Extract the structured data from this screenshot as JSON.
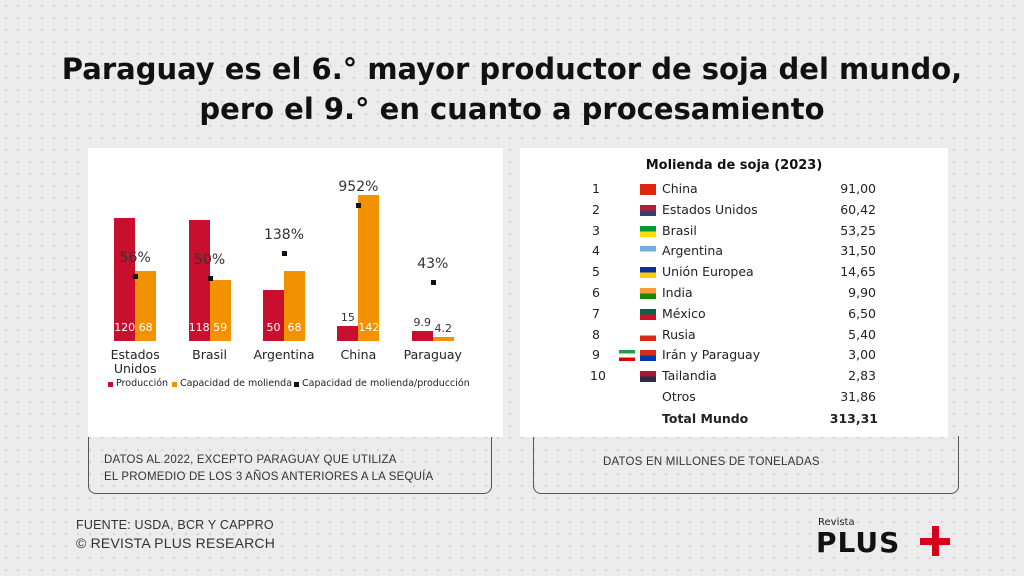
{
  "header": {
    "title_line1": "Paraguay es el 6.° mayor productor de soja del mundo,",
    "title_line2": "pero el 9.° en cuanto a procesamiento"
  },
  "chart_data": {
    "type": "bar",
    "categories": [
      "Estados Unidos",
      "Brasil",
      "Argentina",
      "China",
      "Paraguay"
    ],
    "series": [
      {
        "name": "Producción",
        "color": "#c8102e",
        "values": [
          120,
          118,
          50,
          15,
          9.9
        ]
      },
      {
        "name": "Capacidad de molienda",
        "color": "#f39200",
        "values": [
          68,
          59,
          68,
          142,
          4.2
        ]
      },
      {
        "name": "Capacidad de molienda/producción",
        "color": "#111111",
        "axis": "y2",
        "values": [
          56,
          50,
          138,
          952,
          43
        ],
        "value_labels": [
          "56%",
          "50%",
          "138%",
          "952%",
          "43%"
        ]
      }
    ],
    "ylim": [
      0,
      150
    ],
    "y2lim": [
      4,
      2000
    ],
    "y2log": true,
    "legend": "bottom",
    "note": [
      "DATOS AL 2022, EXCEPTO PARAGUAY QUE UTILIZA",
      "EL PROMEDIO DE LOS 3 AÑOS ANTERIORES A LA SEQUÍA"
    ]
  },
  "table": {
    "title": "Molienda de soja (2023)",
    "rows": [
      [
        "1",
        "China",
        "91,00"
      ],
      [
        "2",
        "Estados Unidos",
        "60,42"
      ],
      [
        "3",
        "Brasil",
        "53,25"
      ],
      [
        "4",
        "Argentina",
        "31,50"
      ],
      [
        "5",
        "Unión Europea",
        "14,65"
      ],
      [
        "6",
        "India",
        "9,90"
      ],
      [
        "7",
        "México",
        "6,50"
      ],
      [
        "8",
        "Rusia",
        "5,40"
      ],
      [
        "9",
        "Irán y Paraguay",
        "3,00"
      ],
      [
        "10",
        "Tailandia",
        "2,83"
      ]
    ],
    "others": [
      "Otros",
      "31,86"
    ],
    "total": [
      "Total Mundo",
      "313,31"
    ],
    "note": "DATOS EN MILLONES DE TONELADAS"
  },
  "footer": {
    "source": "FUENTE: USDA, BCR Y CAPPRO",
    "copyright": "© REVISTA PLUS RESEARCH",
    "logo_small": "Revista",
    "logo_big": "PLUS"
  }
}
